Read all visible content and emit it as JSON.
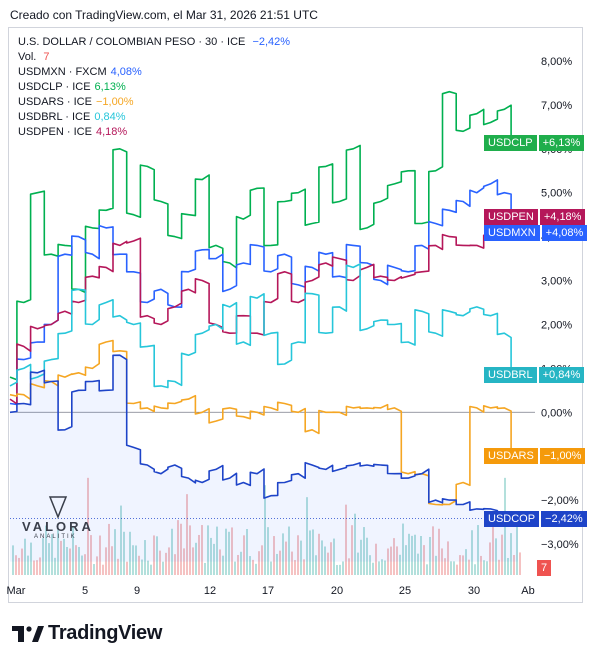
{
  "header": {
    "text": "Creado con TradingView.com, el Mar 31, 2026 21:51 UTC"
  },
  "legend": {
    "title": "U.S. DOLLAR / COLOMBIAN PESO · 30 · ICE",
    "title_change": "−2,42%",
    "vol_label": "Vol.",
    "vol_value": "7",
    "items": [
      {
        "label": "USDMXN · FXCM",
        "value": "4,08%",
        "color": "#2962ff"
      },
      {
        "label": "USDCLP · ICE",
        "value": "6,13%",
        "color": "#00b050"
      },
      {
        "label": "USDARS · ICE",
        "value": "−1,00%",
        "color": "#f5a623"
      },
      {
        "label": "USDBRL · ICE",
        "value": "0,84%",
        "color": "#26c6da"
      },
      {
        "label": "USDPEN · ICE",
        "value": "4,18%",
        "color": "#b5175a"
      }
    ]
  },
  "tags": [
    {
      "name": "USDCLP",
      "value": "+6,13%",
      "color": "#1fae4c"
    },
    {
      "name": "USDPEN",
      "value": "+4,18%",
      "color": "#b5175a"
    },
    {
      "name": "USDMXN",
      "value": "+4,08%",
      "color": "#2962ff"
    },
    {
      "name": "USDBRL",
      "value": "+0,84%",
      "color": "#26b5c4"
    },
    {
      "name": "USDARS",
      "value": "−1,00%",
      "color": "#f59a0b"
    },
    {
      "name": "USDCOP",
      "value": "−2,42%",
      "color": "#1e44c8"
    }
  ],
  "vol_tag": "7",
  "watermark": {
    "text": "VALORA",
    "sub": "ANALITIK"
  },
  "footer": {
    "brand": "TradingView"
  },
  "chart_data": {
    "type": "line",
    "x_tick_labels": [
      "Mar",
      "5",
      "9",
      "12",
      "17",
      "20",
      "25",
      "30",
      "Ab"
    ],
    "y_tick_labels": [
      "8,00%",
      "7,00%",
      "6,00%",
      "5,00%",
      "4,00%",
      "3,00%",
      "2,00%",
      "1,00%",
      "0,00%",
      "−1,00%",
      "−2,00%",
      "−3,00%"
    ],
    "ylim": [
      -3.4,
      8.3
    ],
    "series": [
      {
        "name": "USDCLP",
        "color": "#00b050",
        "values": [
          0.8,
          2.5,
          5.0,
          3.6,
          3.8,
          2.8,
          4.2,
          4.6,
          6.0,
          4.5,
          5.6,
          4.8,
          4.0,
          4.5,
          5.3,
          3.8,
          3.4,
          4.4,
          5.1,
          3.8,
          4.8,
          5.0,
          4.3,
          5.6,
          4.8,
          6.0,
          4.2,
          4.8,
          5.2,
          5.5,
          4.3,
          5.5,
          7.3,
          6.4,
          6.8,
          6.6,
          6.9,
          6.13
        ]
      },
      {
        "name": "USDMXN",
        "color": "#2962ff",
        "values": [
          0.2,
          1.2,
          1.6,
          2.0,
          3.6,
          4.0,
          3.6,
          4.2,
          3.6,
          3.2,
          2.5,
          2.8,
          2.4,
          3.2,
          3.7,
          3.5,
          2.8,
          3.4,
          3.8,
          3.2,
          3.6,
          2.9,
          3.3,
          3.6,
          3.1,
          3.8,
          3.4,
          3.0,
          3.3,
          3.2,
          3.8,
          4.3,
          4.6,
          4.8,
          5.0,
          5.2,
          5.0,
          4.08
        ]
      },
      {
        "name": "USDPEN",
        "color": "#b5175a",
        "values": [
          0.3,
          1.5,
          1.9,
          2.0,
          2.3,
          2.5,
          3.1,
          3.3,
          3.8,
          3.9,
          2.2,
          2.0,
          2.4,
          2.8,
          3.0,
          2.0,
          1.8,
          2.2,
          1.8,
          2.5,
          3.2,
          2.5,
          3.0,
          3.4,
          3.5,
          3.0,
          3.3,
          3.1,
          3.0,
          3.1,
          3.2,
          3.8,
          4.0,
          3.8,
          3.8,
          4.0,
          4.1,
          4.18
        ]
      },
      {
        "name": "USDBRL",
        "color": "#26c6da",
        "values": [
          0.6,
          1.0,
          0.8,
          1.2,
          1.8,
          2.8,
          2.0,
          2.5,
          2.2,
          2.0,
          1.5,
          0.6,
          0.7,
          1.3,
          1.8,
          2.0,
          2.4,
          1.6,
          2.6,
          1.8,
          1.1,
          1.6,
          2.7,
          1.8,
          2.4,
          3.3,
          1.9,
          2.1,
          2.0,
          1.6,
          2.3,
          1.8,
          2.3,
          2.2,
          2.4,
          2.2,
          1.8,
          0.84
        ]
      },
      {
        "name": "USDARS",
        "color": "#f5a623",
        "values": [
          0.4,
          0.4,
          0.6,
          0.7,
          0.8,
          0.9,
          1.0,
          1.6,
          1.4,
          0.2,
          0.1,
          0.1,
          0.2,
          0.3,
          0.0,
          -0.2,
          0.1,
          -0.1,
          0.0,
          0.1,
          0.2,
          0.0,
          -0.4,
          0.0,
          0.0,
          0.1,
          0.1,
          0.1,
          0.1,
          -1.4,
          -1.4,
          -2.1,
          -2.1,
          -1.6,
          0.1,
          0.1,
          0.1,
          -1.0
        ]
      },
      {
        "name": "USDCOP",
        "color": "#1e44c8",
        "values": [
          0.0,
          0.2,
          0.9,
          0.7,
          -0.4,
          0.5,
          0.7,
          0.5,
          1.3,
          -0.8,
          -1.2,
          -1.4,
          -1.2,
          -1.5,
          -1.6,
          -1.3,
          -1.5,
          -1.6,
          -1.4,
          -1.9,
          -1.6,
          -1.4,
          -1.2,
          -1.3,
          -1.3,
          -1.2,
          -1.2,
          -1.2,
          -1.4,
          -1.5,
          -1.4,
          -2.0,
          -2.0,
          -2.1,
          -2.2,
          -2.2,
          -2.3,
          -2.42
        ]
      }
    ]
  }
}
